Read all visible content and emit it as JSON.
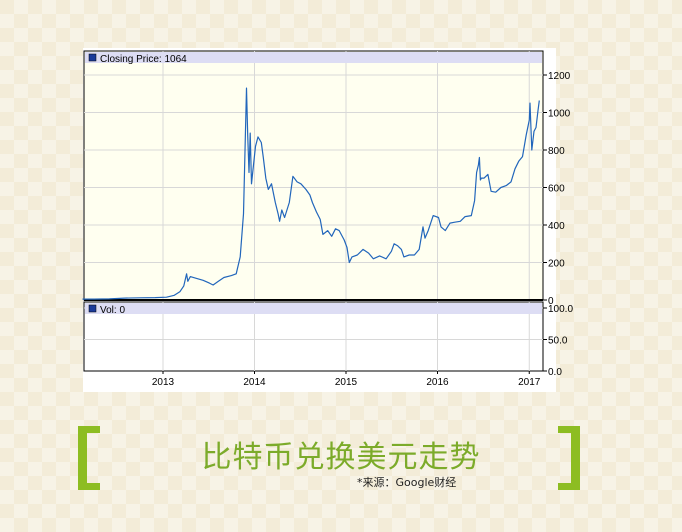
{
  "title": "比特币兑换美元走势",
  "source": "*来源：Google财经",
  "colors": {
    "accent": "#8dbd22",
    "title": "#7cab2a",
    "line": "#2266bb",
    "plot_bg": "#fffff0",
    "legend_bg": "#ddddf4"
  },
  "chart_data": {
    "type": "line",
    "legend": "Closing Price: 1064",
    "vol_legend": "Vol: 0",
    "x_ticks": [
      "2013",
      "2014",
      "2015",
      "2016",
      "2017"
    ],
    "y_ticks": [
      "1200",
      "1000",
      "800",
      "600",
      "400",
      "200",
      "0"
    ],
    "vol_ticks": [
      "100.0",
      "50.0",
      "0.0"
    ],
    "ylim": [
      0,
      1300
    ],
    "vol_ylim": [
      0,
      100
    ],
    "grid": true,
    "series": [
      {
        "x": [
          "2012-02-15",
          "2012-04-01",
          "2012-06-01",
          "2012-08-01",
          "2012-10-01",
          "2012-12-01",
          "2013-01-15",
          "2013-02-15",
          "2013-03-10",
          "2013-03-25",
          "2013-04-05",
          "2013-04-10",
          "2013-04-20",
          "2013-05-15",
          "2013-06-10",
          "2013-07-05",
          "2013-07-20",
          "2013-08-10",
          "2013-09-01",
          "2013-10-01",
          "2013-10-20",
          "2013-11-05",
          "2013-11-18",
          "2013-11-30",
          "2013-12-05",
          "2013-12-10",
          "2013-12-15",
          "2013-12-20",
          "2013-12-28",
          "2014-01-05",
          "2014-01-15",
          "2014-01-28",
          "2014-02-05",
          "2014-02-15",
          "2014-02-25",
          "2014-03-10",
          "2014-03-25",
          "2014-04-05",
          "2014-04-11",
          "2014-04-20",
          "2014-05-01",
          "2014-05-20",
          "2014-06-03",
          "2014-06-20",
          "2014-07-05",
          "2014-07-25",
          "2014-08-10",
          "2014-08-20",
          "2014-09-05",
          "2014-09-20",
          "2014-10-01",
          "2014-10-20",
          "2014-11-05",
          "2014-11-20",
          "2014-12-05",
          "2014-12-25",
          "2015-01-05",
          "2015-01-14",
          "2015-01-25",
          "2015-02-15",
          "2015-03-10",
          "2015-04-01",
          "2015-04-20",
          "2015-05-15",
          "2015-06-10",
          "2015-07-01",
          "2015-07-12",
          "2015-07-25",
          "2015-08-10",
          "2015-08-20",
          "2015-09-10",
          "2015-10-01",
          "2015-10-20",
          "2015-11-04",
          "2015-11-12",
          "2015-11-25",
          "2015-12-15",
          "2016-01-05",
          "2016-01-15",
          "2016-02-01",
          "2016-02-20",
          "2016-03-10",
          "2016-04-01",
          "2016-04-20",
          "2016-05-15",
          "2016-05-28",
          "2016-06-05",
          "2016-06-12",
          "2016-06-16",
          "2016-06-20",
          "2016-06-24",
          "2016-07-05",
          "2016-07-20",
          "2016-08-02",
          "2016-08-20",
          "2016-09-10",
          "2016-10-01",
          "2016-10-20",
          "2016-11-05",
          "2016-11-20",
          "2016-12-05",
          "2016-12-20",
          "2017-01-01",
          "2017-01-04",
          "2017-01-11",
          "2017-01-20",
          "2017-01-28",
          "2017-02-05",
          "2017-02-10"
        ],
        "values": [
          5,
          5,
          6,
          10,
          12,
          13,
          15,
          25,
          45,
          75,
          140,
          100,
          125,
          115,
          105,
          90,
          80,
          100,
          120,
          130,
          140,
          230,
          460,
          1130,
          880,
          680,
          890,
          620,
          720,
          820,
          870,
          840,
          760,
          650,
          590,
          620,
          520,
          460,
          420,
          480,
          440,
          520,
          660,
          630,
          620,
          590,
          560,
          520,
          470,
          430,
          350,
          370,
          340,
          380,
          370,
          320,
          280,
          200,
          230,
          240,
          270,
          250,
          220,
          235,
          220,
          260,
          300,
          290,
          270,
          230,
          240,
          240,
          270,
          390,
          330,
          370,
          450,
          440,
          390,
          370,
          410,
          415,
          420,
          445,
          450,
          530,
          680,
          720,
          760,
          640,
          650,
          650,
          670,
          580,
          575,
          600,
          610,
          630,
          700,
          740,
          765,
          880,
          960,
          1050,
          800,
          900,
          920,
          1010,
          1064
        ]
      }
    ]
  }
}
